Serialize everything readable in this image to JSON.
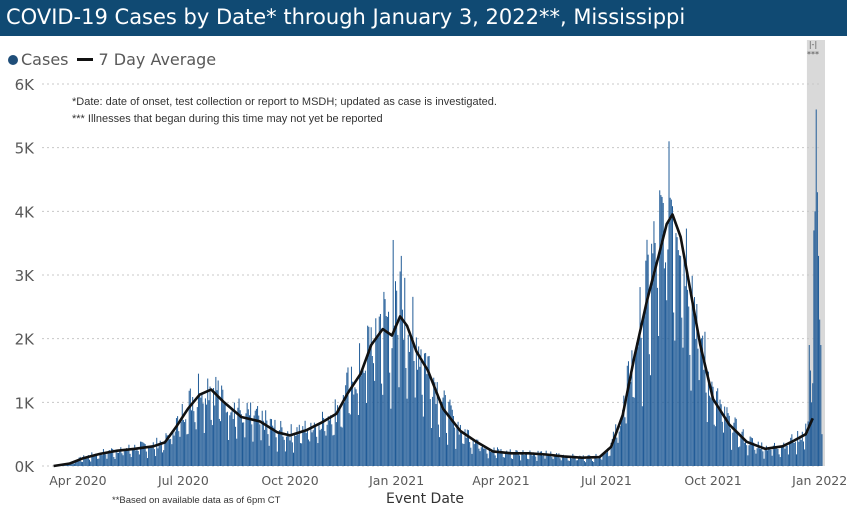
{
  "header": {
    "title": "COVID-19 Cases by Date* through January 3, 2022**, Mississippi"
  },
  "legend": {
    "cases_label": "Cases",
    "avg_label": "7 Day Average"
  },
  "colors": {
    "title_bg": "#104a73",
    "bar": "#1f5a96",
    "line": "#111111",
    "shade": "#d9d9d9"
  },
  "notes": {
    "date_note": "*Date: date of onset, test collection or report to MSDH; updated as case is investigated.",
    "illness_note": "*** Illnesses that began during this time may not yet be reported",
    "footnote": "**Based on available data as of 6pm CT",
    "shade_top_label": "|-|",
    "shade_stars": "***"
  },
  "chart_data": {
    "type": "bar",
    "title": "COVID-19 Cases by Date* through January 3, 2022**, Mississippi",
    "xlabel": "Event Date",
    "ylabel": "",
    "x_start": "2020-03-01",
    "x_end": "2022-01-03",
    "ylim": [
      0,
      6000
    ],
    "y_ticks": [
      0,
      1000,
      2000,
      3000,
      4000,
      5000,
      6000
    ],
    "y_tick_labels": [
      "0K",
      "1K",
      "2K",
      "3K",
      "4K",
      "5K",
      "6K"
    ],
    "x_ticks": [
      {
        "date": "2020-04-01",
        "label": "Apr 2020"
      },
      {
        "date": "2020-07-01",
        "label": "Jul 2020"
      },
      {
        "date": "2020-10-01",
        "label": "Oct 2020"
      },
      {
        "date": "2021-01-01",
        "label": "Jan 2021"
      },
      {
        "date": "2021-04-01",
        "label": "Apr 2021"
      },
      {
        "date": "2021-07-01",
        "label": "Jul 2021"
      },
      {
        "date": "2021-10-01",
        "label": "Oct 2021"
      },
      {
        "date": "2022-01-01",
        "label": "Jan 2022"
      }
    ],
    "shaded_region": {
      "start": "2021-12-21",
      "end": "2022-01-03"
    },
    "series": [
      {
        "name": "7 Day Average",
        "kind": "line",
        "points": [
          [
            "2020-03-11",
            0
          ],
          [
            "2020-03-25",
            40
          ],
          [
            "2020-04-05",
            120
          ],
          [
            "2020-04-20",
            190
          ],
          [
            "2020-05-05",
            240
          ],
          [
            "2020-05-20",
            270
          ],
          [
            "2020-06-05",
            310
          ],
          [
            "2020-06-15",
            370
          ],
          [
            "2020-06-25",
            620
          ],
          [
            "2020-07-05",
            900
          ],
          [
            "2020-07-15",
            1120
          ],
          [
            "2020-07-25",
            1200
          ],
          [
            "2020-08-05",
            1000
          ],
          [
            "2020-08-20",
            770
          ],
          [
            "2020-09-05",
            700
          ],
          [
            "2020-09-20",
            530
          ],
          [
            "2020-10-01",
            480
          ],
          [
            "2020-10-15",
            560
          ],
          [
            "2020-10-28",
            680
          ],
          [
            "2020-11-10",
            820
          ],
          [
            "2020-11-20",
            1150
          ],
          [
            "2020-12-01",
            1450
          ],
          [
            "2020-12-10",
            1900
          ],
          [
            "2020-12-20",
            2150
          ],
          [
            "2020-12-28",
            2050
          ],
          [
            "2021-01-04",
            2350
          ],
          [
            "2021-01-10",
            2200
          ],
          [
            "2021-01-18",
            1800
          ],
          [
            "2021-01-28",
            1500
          ],
          [
            "2021-02-10",
            900
          ],
          [
            "2021-02-25",
            550
          ],
          [
            "2021-03-10",
            390
          ],
          [
            "2021-03-25",
            230
          ],
          [
            "2021-04-10",
            200
          ],
          [
            "2021-04-25",
            200
          ],
          [
            "2021-05-10",
            180
          ],
          [
            "2021-05-25",
            150
          ],
          [
            "2021-06-10",
            130
          ],
          [
            "2021-06-25",
            140
          ],
          [
            "2021-07-05",
            300
          ],
          [
            "2021-07-15",
            800
          ],
          [
            "2021-07-25",
            1700
          ],
          [
            "2021-08-05",
            2600
          ],
          [
            "2021-08-15",
            3300
          ],
          [
            "2021-08-22",
            3800
          ],
          [
            "2021-08-27",
            3950
          ],
          [
            "2021-09-03",
            3600
          ],
          [
            "2021-09-10",
            2900
          ],
          [
            "2021-09-20",
            1900
          ],
          [
            "2021-10-01",
            1050
          ],
          [
            "2021-10-15",
            650
          ],
          [
            "2021-10-30",
            380
          ],
          [
            "2021-11-15",
            270
          ],
          [
            "2021-11-30",
            310
          ],
          [
            "2021-12-10",
            400
          ],
          [
            "2021-12-20",
            500
          ],
          [
            "2021-12-26",
            750
          ]
        ]
      },
      {
        "name": "Cases",
        "kind": "bar",
        "note": "Daily bar heights approximately follow the 7 day average with daily fluctuation; late peaks listed here",
        "late_values": [
          [
            "2021-12-22",
            700
          ],
          [
            "2021-12-23",
            1900
          ],
          [
            "2021-12-24",
            1500
          ],
          [
            "2021-12-25",
            1000
          ],
          [
            "2021-12-26",
            1300
          ],
          [
            "2021-12-27",
            3700
          ],
          [
            "2021-12-28",
            4000
          ],
          [
            "2021-12-29",
            5600
          ],
          [
            "2021-12-30",
            4300
          ],
          [
            "2021-12-31",
            3300
          ],
          [
            "2022-01-01",
            2300
          ],
          [
            "2022-01-02",
            1900
          ],
          [
            "2022-01-03",
            500
          ]
        ],
        "peak_values": [
          [
            "2020-07-14",
            1450
          ],
          [
            "2020-12-29",
            3550
          ],
          [
            "2021-01-05",
            3300
          ],
          [
            "2021-08-24",
            5100
          ]
        ]
      }
    ]
  }
}
